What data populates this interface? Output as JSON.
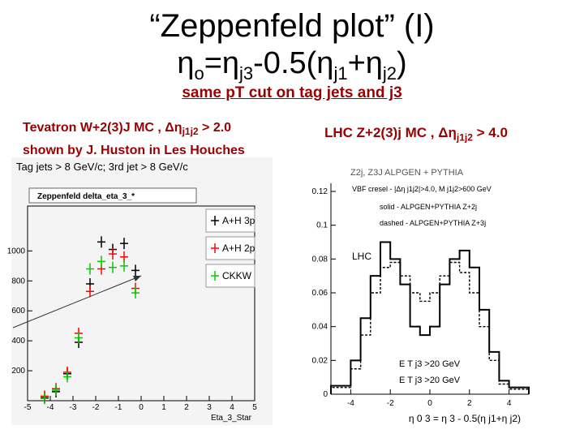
{
  "slide": {
    "title": "“Zeppenfeld plot” (I)",
    "formula": {
      "eta1": "η",
      "sub_o": "o",
      "eq": "=η",
      "sub_j3": "j3",
      "mid": "-0.5(η",
      "sub_j1": "j1",
      "plus": "+η",
      "sub_j2": "j2",
      "close": ")"
    },
    "subtitle": "same pT cut on tag jets and j3",
    "left_caption": {
      "line1_a": "Tevatron W+2(3)J MC , Δη",
      "line1_sub": "j1j2",
      "line1_b": " > 2.0",
      "line2": "shown by J. Huston in Les Houches"
    },
    "right_caption": {
      "a": "LHC Z+2(3)j MC , Δη",
      "sub": "j1j2",
      "b": " > 4.0"
    }
  },
  "chart_data": [
    {
      "type": "scatter",
      "title": "Tag jets > 8 GeV/c; 3rd jet > 8 GeV/c",
      "box_label": "Zeppenfeld delta_eta_3_*",
      "xlabel": "Eta_3_Star",
      "xlim": [
        -5,
        5
      ],
      "ylim": [
        0,
        1300
      ],
      "x_ticks": [
        "-5",
        "-4",
        "-3",
        "-2",
        "-1",
        "0",
        "1",
        "2",
        "3",
        "4",
        "5"
      ],
      "y_ticks": [
        "200",
        "400",
        "600",
        "800",
        "1000"
      ],
      "legend": [
        "A+H 3p",
        "A+H 2p",
        "CKKW"
      ],
      "colors": {
        "A+H 3p": "#000000",
        "A+H 2p": "#ff0000",
        "CKKW": "#00cc00"
      },
      "series": [
        {
          "name": "A+H 3p",
          "x": [
            -4.25,
            -3.75,
            -3.25,
            -2.75,
            -2.25,
            -1.75,
            -1.25,
            -0.75,
            -0.25
          ],
          "y": [
            20,
            60,
            180,
            390,
            780,
            1060,
            1010,
            1050,
            870
          ]
        },
        {
          "name": "A+H 2p",
          "x": [
            -4.25,
            -3.75,
            -3.25,
            -2.75,
            -2.25,
            -1.75,
            -1.25,
            -0.75,
            -0.25
          ],
          "y": [
            30,
            80,
            190,
            450,
            730,
            880,
            980,
            960,
            750
          ]
        },
        {
          "name": "CKKW",
          "x": [
            -4.25,
            -3.75,
            -3.25,
            -2.75,
            -2.25,
            -1.75,
            -1.25,
            -0.75,
            -0.25
          ],
          "y": [
            15,
            70,
            160,
            420,
            880,
            930,
            890,
            900,
            720
          ]
        }
      ]
    },
    {
      "type": "line",
      "title": "Z2j, Z3J ALPGEN + PYTHIA",
      "annotations": [
        "VBF cresel - |Δη j1j2|>4.0, M j1j2>600 GeV",
        "solid - ALPGEN+PYTHIA Z+2j",
        "dashed - ALPGEN+PYTHIA Z+3j",
        "LHC",
        "E T j3 >20 GeV",
        "E T j3 >20 GeV"
      ],
      "xlabel": "η 0 3 = η 3 - 0.5(η j1+η j2)",
      "xlim": [
        -5,
        5
      ],
      "ylim": [
        0,
        0.12
      ],
      "x_ticks": [
        "-4",
        "-2",
        "0",
        "2",
        "4"
      ],
      "y_ticks": [
        "0",
        "0.02",
        "0.04",
        "0.06",
        "0.08",
        "0.1",
        "0.12"
      ],
      "bin_edges": [
        -5,
        -4,
        -3.5,
        -3,
        -2.5,
        -2,
        -1.5,
        -1,
        -0.5,
        0,
        0.5,
        1,
        1.5,
        2,
        2.5,
        3,
        3.5,
        4,
        5
      ],
      "series": [
        {
          "name": "ALPGEN+PYTHIA Z+2j",
          "values": [
            0.005,
            0.02,
            0.045,
            0.07,
            0.09,
            0.08,
            0.065,
            0.04,
            0.035,
            0.04,
            0.065,
            0.08,
            0.085,
            0.075,
            0.05,
            0.025,
            0.008,
            0.004
          ]
        },
        {
          "name": "ALPGEN+PYTHIA Z+3j",
          "values": [
            0.004,
            0.015,
            0.035,
            0.06,
            0.075,
            0.078,
            0.07,
            0.06,
            0.055,
            0.06,
            0.07,
            0.078,
            0.072,
            0.06,
            0.04,
            0.02,
            0.006,
            0.003
          ]
        }
      ]
    }
  ]
}
